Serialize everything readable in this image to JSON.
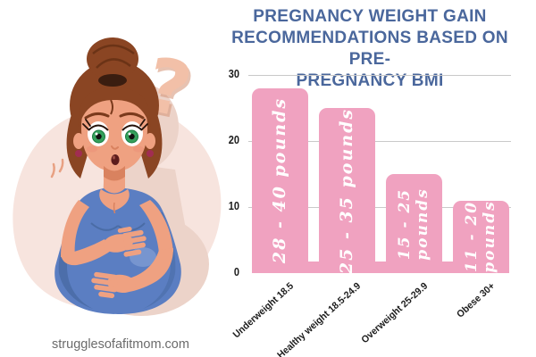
{
  "title": {
    "text": "PREGNANCY WEIGHT GAIN RECOMMENDATIONS BASED ON PRE-PREGNANCY BMI",
    "lines": [
      "PREGNANCY WEIGHT GAIN",
      "RECOMMENDATIONS BASED ON PRE-",
      "PREGNANCY BMI"
    ]
  },
  "watermark": {
    "text": "strugglesofafitmom.com"
  },
  "chart_data": {
    "type": "bar",
    "title": "Pregnancy Weight Gain Recommendations Based on Pre-Pregnancy BMI",
    "categories": [
      "Underweight 18.5",
      "Healthy weight 18.5-24.9",
      "Overweight 25-29.9",
      "Obese 30+"
    ],
    "values": [
      28,
      25,
      15,
      11
    ],
    "bar_labels": [
      [
        "28 - 40 pounds"
      ],
      [
        "25 - 35 pounds"
      ],
      [
        "15 - 25",
        "pounds"
      ],
      [
        "11 - 20",
        "pounds"
      ]
    ],
    "ylim": [
      0,
      30
    ],
    "yticks": [
      0,
      10,
      20,
      30
    ],
    "xlabel": "",
    "ylabel": "",
    "grid": true,
    "legend": null
  },
  "illustration": {
    "name": "pregnant-woman-cartoon",
    "elements": [
      "question-mark",
      "hair-bun",
      "blue-tank-top",
      "pregnant-belly",
      "pink-blob-background"
    ]
  },
  "colors": {
    "title-color": "#4a679c",
    "bar-fill": "#f0a2c0",
    "bar-label": "#ffffff",
    "grid-color": "#c9c9c9",
    "axis-text": "#1c1c1c",
    "watermark-color": "#6b6b6b",
    "blob": "#f7e4de",
    "blob-shadow": "#ecd3c9",
    "skin": "#efa181",
    "skin-shade": "#d9825f",
    "hair": "#8a4523",
    "hair-dark": "#3a1d10",
    "top": "#5b7ec2",
    "top-shade": "#46689f",
    "iris": "#35a05c",
    "mouth": "#5c1c1c",
    "earring": "#a12d52",
    "qmark": "#f2c0a8"
  }
}
